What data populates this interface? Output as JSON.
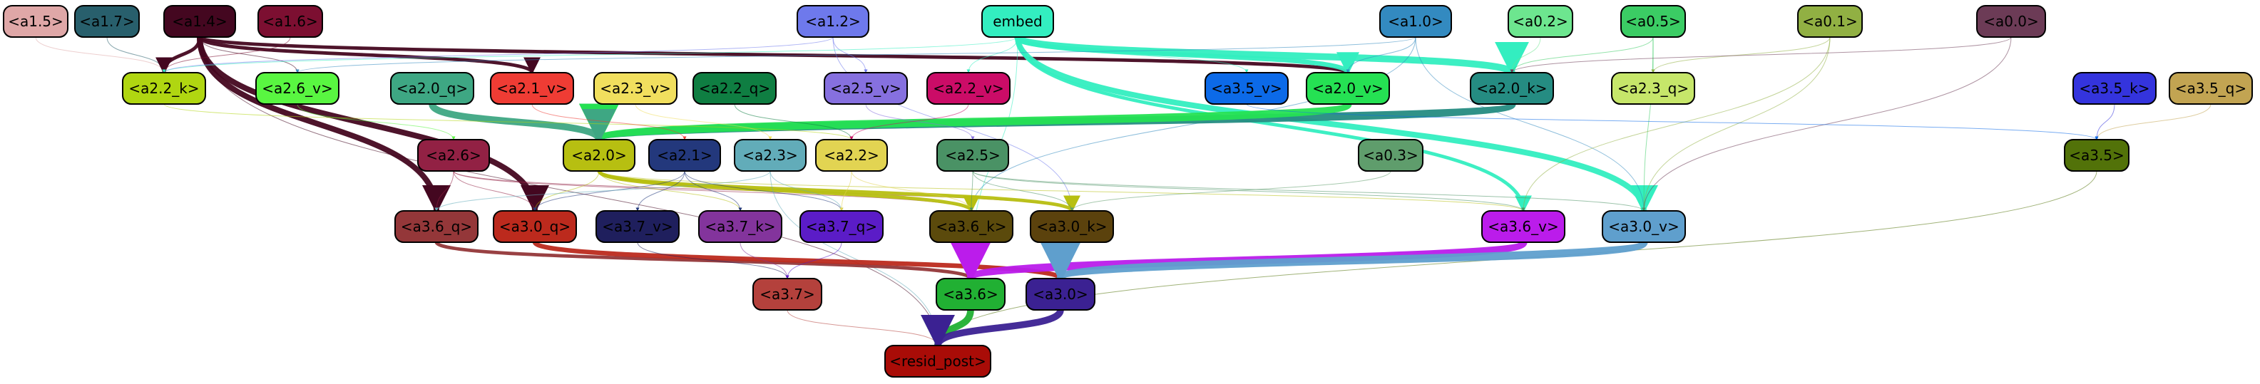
{
  "graph": {
    "nodes": [
      {
        "id": "a1.5",
        "label": "<a1.5>",
        "fill": "#dfa7a7",
        "text": "#000000"
      },
      {
        "id": "a1.7",
        "label": "<a1.7>",
        "fill": "#285f6c",
        "text": "#000000"
      },
      {
        "id": "a1.4",
        "label": "<a1.4>",
        "fill": "#440720",
        "text": "#000000"
      },
      {
        "id": "a1.6",
        "label": "<a1.6>",
        "fill": "#7c0f31",
        "text": "#000000"
      },
      {
        "id": "a1.2",
        "label": "<a1.2>",
        "fill": "#6e79ec",
        "text": "#000000"
      },
      {
        "id": "embed",
        "label": "embed",
        "fill": "#33eec0",
        "text": "#000000"
      },
      {
        "id": "a1.0",
        "label": "<a1.0>",
        "fill": "#338ac0",
        "text": "#000000"
      },
      {
        "id": "a0.2",
        "label": "<a0.2>",
        "fill": "#6de68f",
        "text": "#000000"
      },
      {
        "id": "a0.5",
        "label": "<a0.5>",
        "fill": "#3bcc64",
        "text": "#000000"
      },
      {
        "id": "a0.1",
        "label": "<a0.1>",
        "fill": "#91b043",
        "text": "#000000"
      },
      {
        "id": "a0.0",
        "label": "<a0.0>",
        "fill": "#6c3b56",
        "text": "#000000"
      },
      {
        "id": "a2.2_k",
        "label": "<a2.2_k>",
        "fill": "#b0d611",
        "text": "#000000"
      },
      {
        "id": "a2.6_v",
        "label": "<a2.6_v>",
        "fill": "#59f641",
        "text": "#000000"
      },
      {
        "id": "a2.0_q",
        "label": "<a2.0_q>",
        "fill": "#3ea783",
        "text": "#000000"
      },
      {
        "id": "a2.1_v",
        "label": "<a2.1_v>",
        "fill": "#ef3c34",
        "text": "#000000"
      },
      {
        "id": "a2.3_v",
        "label": "<a2.3_v>",
        "fill": "#f1df5e",
        "text": "#000000"
      },
      {
        "id": "a2.2_q",
        "label": "<a2.2_q>",
        "fill": "#0f7e42",
        "text": "#000000"
      },
      {
        "id": "a2.5_v",
        "label": "<a2.5_v>",
        "fill": "#8670df",
        "text": "#000000"
      },
      {
        "id": "a2.2_v",
        "label": "<a2.2_v>",
        "fill": "#cb0c67",
        "text": "#000000"
      },
      {
        "id": "a3.5_v",
        "label": "<a3.5_v>",
        "fill": "#0c6ae8",
        "text": "#000000"
      },
      {
        "id": "a2.0_v",
        "label": "<a2.0_v>",
        "fill": "#25e153",
        "text": "#000000"
      },
      {
        "id": "a2.0_k",
        "label": "<a2.0_k>",
        "fill": "#258c82",
        "text": "#000000"
      },
      {
        "id": "a2.3_q",
        "label": "<a2.3_q>",
        "fill": "#c6e66a",
        "text": "#000000"
      },
      {
        "id": "a3.5_k",
        "label": "<a3.5_k>",
        "fill": "#3434dd",
        "text": "#000000"
      },
      {
        "id": "a3.5_q",
        "label": "<a3.5_q>",
        "fill": "#c2a452",
        "text": "#000000"
      },
      {
        "id": "a2.6",
        "label": "<a2.6>",
        "fill": "#922144",
        "text": "#000000"
      },
      {
        "id": "a2.0",
        "label": "<a2.0>",
        "fill": "#b7bf11",
        "text": "#000000"
      },
      {
        "id": "a2.1",
        "label": "<a2.1>",
        "fill": "#23387c",
        "text": "#000000"
      },
      {
        "id": "a2.3",
        "label": "<a2.3>",
        "fill": "#62acb9",
        "text": "#000000"
      },
      {
        "id": "a2.2",
        "label": "<a2.2>",
        "fill": "#e2d452",
        "text": "#000000"
      },
      {
        "id": "a2.5",
        "label": "<a2.5>",
        "fill": "#4a9265",
        "text": "#000000"
      },
      {
        "id": "a0.3",
        "label": "<a0.3>",
        "fill": "#5f9d6c",
        "text": "#000000"
      },
      {
        "id": "a3.5",
        "label": "<a3.5>",
        "fill": "#527209",
        "text": "#000000"
      },
      {
        "id": "a3.6_q",
        "label": "<a3.6_q>",
        "fill": "#943739",
        "text": "#000000"
      },
      {
        "id": "a3.0_q",
        "label": "<a3.0_q>",
        "fill": "#bc2a1d",
        "text": "#000000"
      },
      {
        "id": "a3.7_v",
        "label": "<a3.7_v>",
        "fill": "#1f1f5d",
        "text": "#000000"
      },
      {
        "id": "a3.7_k",
        "label": "<a3.7_k>",
        "fill": "#83349c",
        "text": "#000000"
      },
      {
        "id": "a3.7_q",
        "label": "<a3.7_q>",
        "fill": "#5b1cc7",
        "text": "#000000"
      },
      {
        "id": "a3.6_k",
        "label": "<a3.6_k>",
        "fill": "#5b4a0c",
        "text": "#000000"
      },
      {
        "id": "a3.0_k",
        "label": "<a3.0_k>",
        "fill": "#5b420d",
        "text": "#000000"
      },
      {
        "id": "a3.6_v",
        "label": "<a3.6_v>",
        "fill": "#bb1ceb",
        "text": "#000000"
      },
      {
        "id": "a3.0_v",
        "label": "<a3.0_v>",
        "fill": "#5f9fcd",
        "text": "#000000"
      },
      {
        "id": "a3.7",
        "label": "<a3.7>",
        "fill": "#b4413c",
        "text": "#000000"
      },
      {
        "id": "a3.6",
        "label": "<a3.6>",
        "fill": "#21b033",
        "text": "#000000"
      },
      {
        "id": "a3.0",
        "label": "<a3.0>",
        "fill": "#3b2192",
        "text": "#000000"
      },
      {
        "id": "resid_post",
        "label": "<resid_post>",
        "fill": "#a90c07",
        "text": "#000000"
      }
    ],
    "edges": [
      {
        "from": "a1.5",
        "to": "a2.2_k",
        "color": "#dfa7a7",
        "weight": 1
      },
      {
        "from": "a1.7",
        "to": "a2.2_k",
        "color": "#285f6c",
        "weight": 1
      },
      {
        "from": "a1.4",
        "to": "a2.2_k",
        "color": "#440720",
        "weight": 3
      },
      {
        "from": "a1.4",
        "to": "a2.6_v",
        "color": "#440720",
        "weight": 1
      },
      {
        "from": "a1.4",
        "to": "a2.1_v",
        "color": "#440720",
        "weight": 3
      },
      {
        "from": "a1.4",
        "to": "a2.0_v",
        "color": "#440720",
        "weight": 3
      },
      {
        "from": "a1.4",
        "to": "a3.6_q",
        "color": "#440720",
        "weight": 5
      },
      {
        "from": "a1.4",
        "to": "a3.0_q",
        "color": "#440720",
        "weight": 5
      },
      {
        "from": "a1.4",
        "to": "resid_post",
        "color": "#440720",
        "weight": 1
      },
      {
        "from": "a1.6",
        "to": "a2.2_k",
        "color": "#7c0f31",
        "weight": 1
      },
      {
        "from": "a1.2",
        "to": "a2.5_v",
        "color": "#6e79ec",
        "weight": 1
      },
      {
        "from": "a1.2",
        "to": "a2.2_k",
        "color": "#6e79ec",
        "weight": 1
      },
      {
        "from": "a1.2",
        "to": "a3.0_k",
        "color": "#6e79ec",
        "weight": 1
      },
      {
        "from": "embed",
        "to": "a2.0_k",
        "color": "#33eec0",
        "weight": 6
      },
      {
        "from": "embed",
        "to": "a2.0_v",
        "color": "#33eec0",
        "weight": 4
      },
      {
        "from": "embed",
        "to": "a3.0_v",
        "color": "#33eec0",
        "weight": 5
      },
      {
        "from": "embed",
        "to": "a3.6_v",
        "color": "#33eec0",
        "weight": 3
      },
      {
        "from": "embed",
        "to": "a2.2_k",
        "color": "#33eec0",
        "weight": 1
      },
      {
        "from": "embed",
        "to": "a3.5_v",
        "color": "#33eec0",
        "weight": 1
      },
      {
        "from": "embed",
        "to": "a2.2_v",
        "color": "#33eec0",
        "weight": 1
      },
      {
        "from": "embed",
        "to": "a3.6",
        "color": "#33eec0",
        "weight": 1
      },
      {
        "from": "a1.0",
        "to": "a2.0_v",
        "color": "#338ac0",
        "weight": 1
      },
      {
        "from": "a1.0",
        "to": "a2.6_v",
        "color": "#338ac0",
        "weight": 1
      },
      {
        "from": "a1.0",
        "to": "a3.0_v",
        "color": "#338ac0",
        "weight": 1
      },
      {
        "from": "a1.0",
        "to": "a3.6_k",
        "color": "#338ac0",
        "weight": 1
      },
      {
        "from": "a0.2",
        "to": "a2.0_k",
        "color": "#6de68f",
        "weight": 1
      },
      {
        "from": "a0.5",
        "to": "a2.0_k",
        "color": "#3bcc64",
        "weight": 1
      },
      {
        "from": "a0.5",
        "to": "a2.3_q",
        "color": "#3bcc64",
        "weight": 1
      },
      {
        "from": "a0.5",
        "to": "a3.0_v",
        "color": "#3bcc64",
        "weight": 1
      },
      {
        "from": "a0.1",
        "to": "a2.3_q",
        "color": "#91b043",
        "weight": 1
      },
      {
        "from": "a0.1",
        "to": "a3.6_v",
        "color": "#91b043",
        "weight": 1
      },
      {
        "from": "a0.1",
        "to": "a3.0_v",
        "color": "#91b043",
        "weight": 1
      },
      {
        "from": "a0.0",
        "to": "a2.0_k",
        "color": "#6c3b56",
        "weight": 1
      },
      {
        "from": "a0.0",
        "to": "a3.0_v",
        "color": "#6c3b56",
        "weight": 1
      },
      {
        "from": "a2.0_k",
        "to": "a2.0",
        "color": "#258c82",
        "weight": 7
      },
      {
        "from": "a2.0_v",
        "to": "a2.0",
        "color": "#25e153",
        "weight": 7
      },
      {
        "from": "a2.0_q",
        "to": "a2.0",
        "color": "#3ea783",
        "weight": 6
      },
      {
        "from": "a2.2_k",
        "to": "a2.2",
        "color": "#b0d611",
        "weight": 1
      },
      {
        "from": "a2.6_v",
        "to": "a2.6",
        "color": "#59f641",
        "weight": 1
      },
      {
        "from": "a2.1_v",
        "to": "a2.1",
        "color": "#ef3c34",
        "weight": 1
      },
      {
        "from": "a2.3_v",
        "to": "a2.3",
        "color": "#f1df5e",
        "weight": 1
      },
      {
        "from": "a2.2_q",
        "to": "a2.2",
        "color": "#0f7e42",
        "weight": 1
      },
      {
        "from": "a2.5_v",
        "to": "a2.5",
        "color": "#8670df",
        "weight": 1
      },
      {
        "from": "a2.2_v",
        "to": "a2.2",
        "color": "#cb0c67",
        "weight": 1
      },
      {
        "from": "a3.5_k",
        "to": "a3.5",
        "color": "#3434dd",
        "weight": 1
      },
      {
        "from": "a3.5_q",
        "to": "a3.5",
        "color": "#c2a452",
        "weight": 1
      },
      {
        "from": "a3.5_v",
        "to": "a3.5",
        "color": "#0c6ae8",
        "weight": 1
      },
      {
        "from": "a3.5",
        "to": "resid_post",
        "color": "#527209",
        "weight": 1
      },
      {
        "from": "a2.6",
        "to": "a3.6_q",
        "color": "#922144",
        "weight": 1
      },
      {
        "from": "a2.6",
        "to": "a3.0_q",
        "color": "#922144",
        "weight": 1
      },
      {
        "from": "a2.6",
        "to": "a3.6_k",
        "color": "#922144",
        "weight": 1
      },
      {
        "from": "a2.6",
        "to": "a3.0_k",
        "color": "#922144",
        "weight": 1
      },
      {
        "from": "a2.0",
        "to": "a3.6_k",
        "color": "#b7bf11",
        "weight": 3
      },
      {
        "from": "a2.0",
        "to": "a3.0_k",
        "color": "#b7bf11",
        "weight": 3
      },
      {
        "from": "a2.0",
        "to": "a3.0_q",
        "color": "#b7bf11",
        "weight": 1
      },
      {
        "from": "a2.0",
        "to": "a3.7_k",
        "color": "#b7bf11",
        "weight": 1
      },
      {
        "from": "a2.0",
        "to": "a3.6_v",
        "color": "#b7bf11",
        "weight": 1
      },
      {
        "from": "a2.1",
        "to": "a3.7_v",
        "color": "#23387c",
        "weight": 1
      },
      {
        "from": "a2.1",
        "to": "a3.7_k",
        "color": "#23387c",
        "weight": 1
      },
      {
        "from": "a2.1",
        "to": "a3.7_q",
        "color": "#23387c",
        "weight": 1
      },
      {
        "from": "a2.1",
        "to": "a3.0_q",
        "color": "#23387c",
        "weight": 1
      },
      {
        "from": "a2.3",
        "to": "a3.7_q",
        "color": "#62acb9",
        "weight": 1
      },
      {
        "from": "a2.3",
        "to": "a3.6_q",
        "color": "#62acb9",
        "weight": 1
      },
      {
        "from": "a2.3",
        "to": "resid_post",
        "color": "#62acb9",
        "weight": 1
      },
      {
        "from": "a2.2",
        "to": "a3.6_k",
        "color": "#e2d452",
        "weight": 1
      },
      {
        "from": "a2.2",
        "to": "a3.7_q",
        "color": "#e2d452",
        "weight": 1
      },
      {
        "from": "a2.5",
        "to": "a3.6_k",
        "color": "#4a9265",
        "weight": 1
      },
      {
        "from": "a2.5",
        "to": "a3.0_k",
        "color": "#4a9265",
        "weight": 1
      },
      {
        "from": "a2.5",
        "to": "a3.6_v",
        "color": "#4a9265",
        "weight": 1
      },
      {
        "from": "a2.5",
        "to": "a3.0_v",
        "color": "#4a9265",
        "weight": 1
      },
      {
        "from": "a0.3",
        "to": "a3.0_k",
        "color": "#5f9d6c",
        "weight": 1
      },
      {
        "from": "a3.6_q",
        "to": "a3.6",
        "color": "#943739",
        "weight": 3
      },
      {
        "from": "a3.0_q",
        "to": "a3.0",
        "color": "#bc2a1d",
        "weight": 4
      },
      {
        "from": "a3.7_v",
        "to": "a3.7",
        "color": "#1f1f5d",
        "weight": 1
      },
      {
        "from": "a3.7_k",
        "to": "a3.7",
        "color": "#83349c",
        "weight": 1
      },
      {
        "from": "a3.7_q",
        "to": "a3.7",
        "color": "#5b1cc7",
        "weight": 1
      },
      {
        "from": "a3.6_k",
        "to": "a3.6",
        "color": "#5b4a0c",
        "weight": 2
      },
      {
        "from": "a3.0_k",
        "to": "a3.0",
        "color": "#5b420d",
        "weight": 3
      },
      {
        "from": "a3.6_v",
        "to": "a3.6",
        "color": "#bb1ceb",
        "weight": 7
      },
      {
        "from": "a3.0_v",
        "to": "a3.0",
        "color": "#5f9fcd",
        "weight": 7
      },
      {
        "from": "a3.7",
        "to": "resid_post",
        "color": "#b4413c",
        "weight": 1
      },
      {
        "from": "a3.6",
        "to": "resid_post",
        "color": "#21b033",
        "weight": 6
      },
      {
        "from": "a3.0",
        "to": "resid_post",
        "color": "#3b2192",
        "weight": 6
      }
    ]
  }
}
